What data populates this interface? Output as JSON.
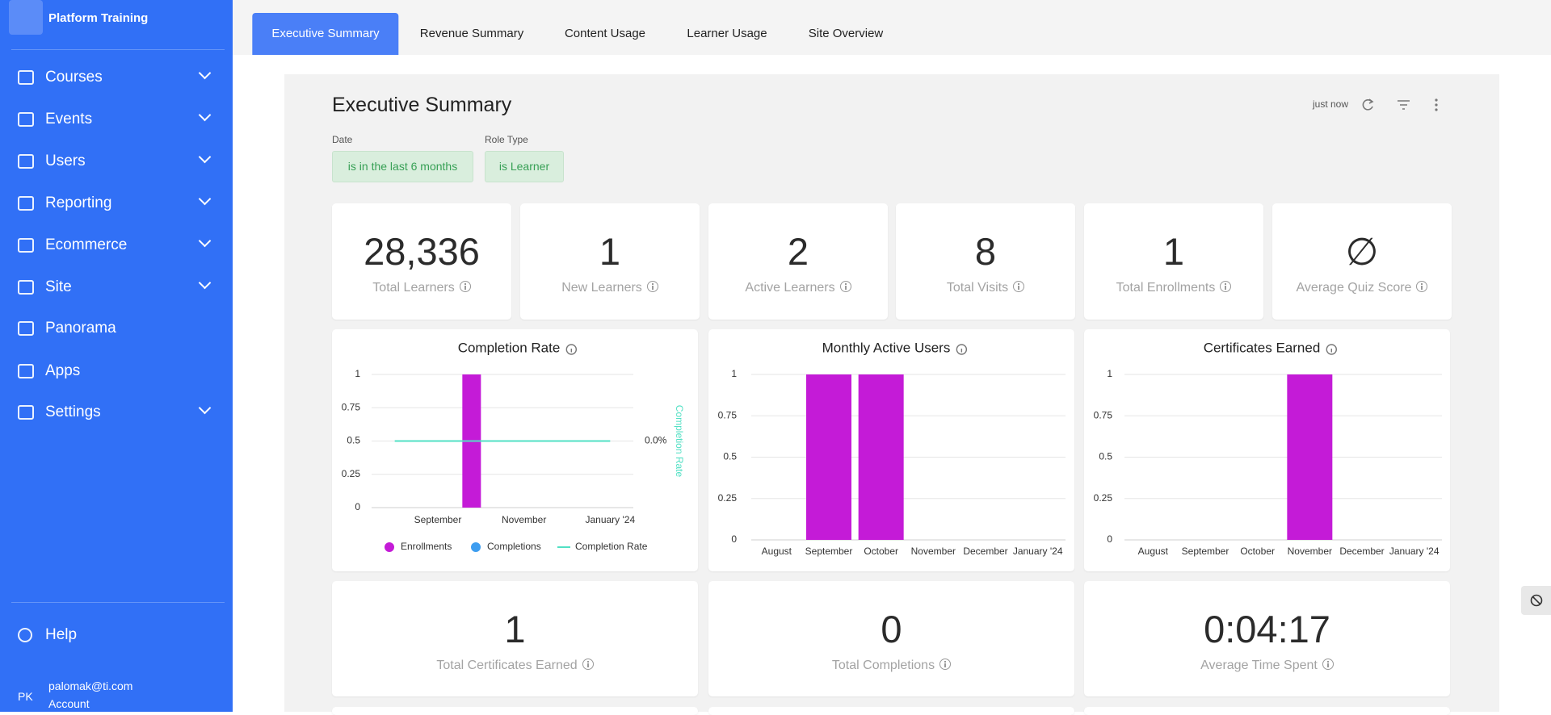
{
  "sidebar": {
    "brand": "Platform Training",
    "nav": [
      {
        "label": "Courses",
        "expandable": true
      },
      {
        "label": "Events",
        "expandable": true
      },
      {
        "label": "Users",
        "expandable": true
      },
      {
        "label": "Reporting",
        "expandable": true
      },
      {
        "label": "Ecommerce",
        "expandable": true
      },
      {
        "label": "Site",
        "expandable": true
      },
      {
        "label": "Panorama",
        "expandable": false
      },
      {
        "label": "Apps",
        "expandable": false
      },
      {
        "label": "Settings",
        "expandable": true
      }
    ],
    "help": "Help",
    "user": {
      "initials": "PK",
      "email": "palomak@ti.com",
      "account": "Account"
    }
  },
  "tabs": [
    "Executive Summary",
    "Revenue Summary",
    "Content Usage",
    "Learner Usage",
    "Site Overview"
  ],
  "dashboard": {
    "title": "Executive Summary",
    "updated": "just now",
    "filters": [
      {
        "label": "Date",
        "value": "is in the last 6 months"
      },
      {
        "label": "Role Type",
        "value": "is Learner"
      }
    ],
    "kpis": [
      {
        "value": "28,336",
        "label": "Total Learners"
      },
      {
        "value": "1",
        "label": "New Learners"
      },
      {
        "value": "2",
        "label": "Active Learners"
      },
      {
        "value": "8",
        "label": "Total Visits"
      },
      {
        "value": "1",
        "label": "Total Enrollments"
      },
      {
        "value": "∅",
        "label": "Average Quiz Score"
      }
    ],
    "kpis2": [
      {
        "value": "1",
        "label": "Total Certificates Earned"
      },
      {
        "value": "0",
        "label": "Total Completions"
      },
      {
        "value": "0:04:17",
        "label": "Average Time Spent"
      }
    ]
  },
  "chart_data": [
    {
      "type": "combo",
      "title": "Completion Rate",
      "categories": [
        null,
        "September",
        null,
        "November",
        null,
        "January '24"
      ],
      "series": [
        {
          "name": "Enrollments",
          "color": "#c41bd7",
          "values": [
            0,
            0,
            1,
            0,
            0,
            0
          ]
        },
        {
          "name": "Completions",
          "color": "#3d9df0",
          "values": [
            0,
            0,
            0,
            0,
            0,
            0
          ]
        },
        {
          "name": "Completion Rate",
          "color": "#52e0c4",
          "values": [
            0,
            0,
            0,
            0,
            0,
            0
          ],
          "axis": "y2"
        }
      ],
      "ylim": [
        0,
        1
      ],
      "yticks": [
        0,
        0.25,
        0.5,
        0.75,
        1
      ],
      "y2lim": [
        -1,
        1
      ],
      "y2ticks": [
        {
          "value": 0,
          "label": "0.0%"
        }
      ],
      "y2label": "Completion Rate",
      "grid": true,
      "legend": "bottom"
    },
    {
      "type": "bar",
      "title": "Monthly Active Users",
      "categories": [
        "August",
        "September",
        "October",
        "November",
        "December",
        "January '24"
      ],
      "values": [
        0,
        1,
        1,
        0,
        0,
        0
      ],
      "color": "#c41bd7",
      "ylim": [
        0,
        1
      ],
      "yticks": [
        0,
        0.25,
        0.5,
        0.75,
        1
      ],
      "grid": true
    },
    {
      "type": "bar",
      "title": "Certificates Earned",
      "categories": [
        "August",
        "September",
        "October",
        "November",
        "December",
        "January '24"
      ],
      "values": [
        0,
        0,
        0,
        1,
        0,
        0
      ],
      "color": "#c41bd7",
      "ylim": [
        0,
        1
      ],
      "yticks": [
        0,
        0.25,
        0.5,
        0.75,
        1
      ],
      "grid": true
    }
  ]
}
